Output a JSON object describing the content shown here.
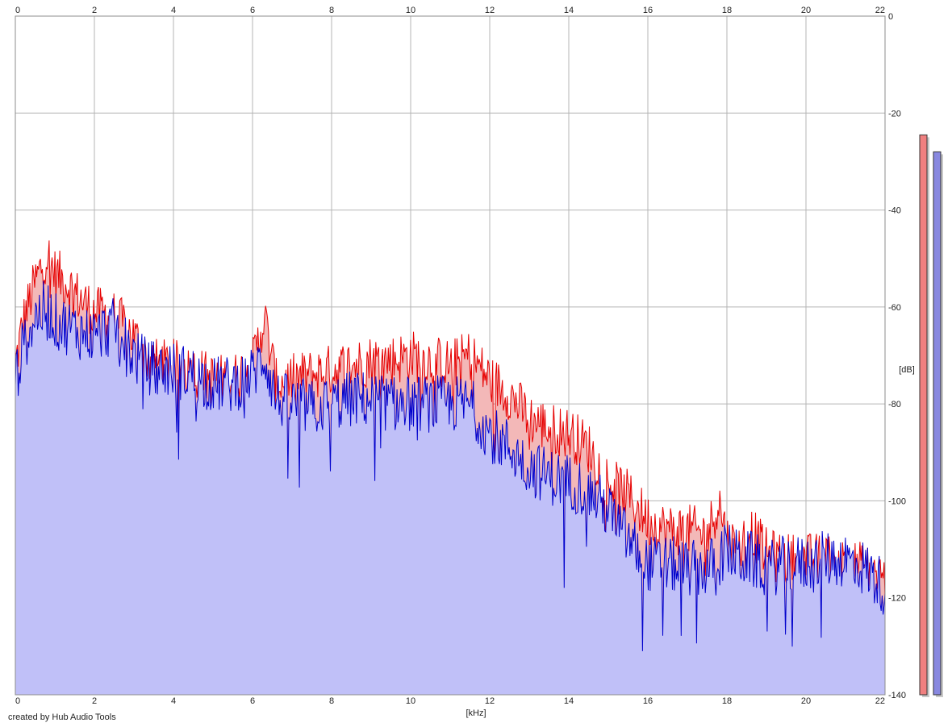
{
  "credit_text": "created by Hub Audio Tools",
  "colors": {
    "left_channel": "#e60000",
    "left_fill": "#f3b8b8",
    "right_channel": "#0000cc",
    "right_fill": "#c0c0f8",
    "grid": "#b4b4b4",
    "meter_left": "#f08080",
    "meter_right": "#8888e0"
  },
  "chart_data": {
    "type": "area",
    "xlabel": "[kHz]",
    "ylabel": "[dB]",
    "xlim": [
      0,
      22
    ],
    "ylim": [
      -140,
      0
    ],
    "x_ticks": [
      "0",
      "2",
      "4",
      "6",
      "8",
      "10",
      "12",
      "14",
      "16",
      "18",
      "20",
      "22"
    ],
    "y_ticks": [
      "0",
      "-20",
      "-40",
      "-60",
      "-80",
      "-100",
      "-120",
      "-140"
    ],
    "grid": true,
    "series": [
      {
        "channel": "left",
        "x": [
          0,
          0.2,
          0.5,
          0.8,
          1,
          1.3,
          1.6,
          2,
          2.5,
          3,
          3.3,
          3.6,
          4,
          4.5,
          5,
          5.5,
          6,
          6.3,
          6.6,
          7,
          7.5,
          8,
          8.5,
          9,
          9.5,
          10,
          10.5,
          11,
          11.5,
          12,
          12.5,
          13,
          13.5,
          14,
          14.5,
          15,
          15.5,
          16,
          16.5,
          17,
          17.5,
          17.8,
          18,
          18.3,
          18.6,
          19,
          19.5,
          20,
          20.5,
          21,
          21.5,
          22
        ],
        "values": [
          -72,
          -63,
          -55,
          -49,
          -53,
          -55,
          -58,
          -61,
          -62,
          -66,
          -70,
          -72,
          -72,
          -73,
          -75,
          -75,
          -72,
          -62,
          -76,
          -75,
          -74,
          -73,
          -72,
          -71,
          -71,
          -70,
          -71,
          -72,
          -70,
          -75,
          -78,
          -83,
          -85,
          -86,
          -89,
          -96,
          -99,
          -104,
          -106,
          -106,
          -107,
          -100,
          -108,
          -110,
          -106,
          -111,
          -112,
          -112,
          -112,
          -113,
          -114,
          -116
        ]
      },
      {
        "channel": "right",
        "x": [
          0,
          0.2,
          0.5,
          0.8,
          1,
          1.3,
          1.6,
          2,
          2.5,
          3,
          3.3,
          3.6,
          4,
          4.5,
          5,
          5.5,
          6,
          6.3,
          6.6,
          7,
          7.5,
          8,
          8.5,
          9,
          9.5,
          10,
          10.5,
          11,
          11.5,
          12,
          12.5,
          13,
          13.5,
          14,
          14.5,
          15,
          15.5,
          16,
          16.5,
          17,
          17.5,
          17.8,
          18,
          18.3,
          18.6,
          19,
          19.5,
          20,
          20.5,
          21,
          21.5,
          22
        ],
        "values": [
          -75,
          -68,
          -62,
          -60,
          -63,
          -64,
          -65,
          -66,
          -64,
          -70,
          -72,
          -73,
          -73,
          -74,
          -76,
          -76,
          -74,
          -70,
          -79,
          -80,
          -81,
          -80,
          -79,
          -79,
          -80,
          -80,
          -80,
          -80,
          -80,
          -86,
          -89,
          -93,
          -95,
          -96,
          -98,
          -102,
          -108,
          -113,
          -113,
          -114,
          -114,
          -112,
          -110,
          -112,
          -112,
          -114,
          -113,
          -113,
          -112,
          -112,
          -114,
          -118
        ]
      }
    ],
    "meters": {
      "left_db": -24.5,
      "right_db": -28
    }
  }
}
